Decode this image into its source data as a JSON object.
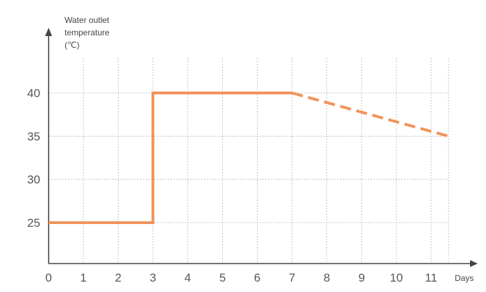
{
  "chart_data": {
    "type": "line",
    "title": "",
    "xlabel": "Days",
    "ylabel_lines": [
      "Water outlet",
      "temperature",
      "(℃)"
    ],
    "x_ticks": [
      "0",
      "1",
      "2",
      "3",
      "4",
      "5",
      "6",
      "7",
      "8",
      "9",
      "10",
      "11"
    ],
    "y_ticks": [
      "25",
      "30",
      "35",
      "40"
    ],
    "xlim": [
      0,
      11.5
    ],
    "ylim": [
      20.5,
      44
    ],
    "grid": true,
    "line_color": "#F0935A",
    "axis_color": "#444444",
    "grid_color": "#9A9A9A",
    "series": [
      {
        "style": "solid",
        "points": [
          [
            0,
            25
          ],
          [
            3,
            25
          ],
          [
            3,
            40
          ],
          [
            7,
            40
          ]
        ]
      },
      {
        "style": "dashed",
        "points": [
          [
            7,
            40
          ],
          [
            11.5,
            35
          ]
        ]
      }
    ]
  }
}
